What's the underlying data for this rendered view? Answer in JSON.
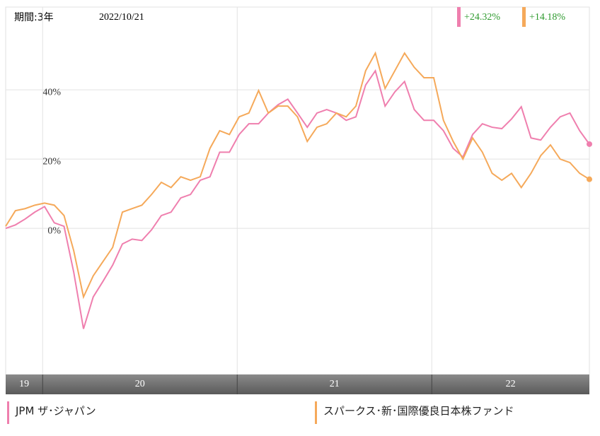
{
  "chart_data": {
    "type": "line",
    "period": "期間:3年",
    "date": "2022/10/21",
    "xlim": [
      2019.81,
      2022.81
    ],
    "ylim": [
      -42.2,
      63.9
    ],
    "yticks": [
      {
        "value": 0,
        "label": "0%"
      },
      {
        "value": 20,
        "label": "20%"
      },
      {
        "value": 40,
        "label": "40%"
      }
    ],
    "year_bands": [
      {
        "label": "19",
        "start": 2019.81,
        "end": 2020
      },
      {
        "label": "20",
        "start": 2020,
        "end": 2021
      },
      {
        "label": "21",
        "start": 2021,
        "end": 2022
      },
      {
        "label": "22",
        "start": 2022,
        "end": 2022.81
      }
    ],
    "x": [
      2019.81,
      2019.86,
      2019.91,
      2019.96,
      2020.01,
      2020.06,
      2020.11,
      2020.16,
      2020.21,
      2020.26,
      2020.31,
      2020.36,
      2020.41,
      2020.46,
      2020.51,
      2020.56,
      2020.61,
      2020.66,
      2020.71,
      2020.76,
      2020.81,
      2020.86,
      2020.91,
      2020.96,
      2021.01,
      2021.06,
      2021.11,
      2021.16,
      2021.21,
      2021.26,
      2021.31,
      2021.36,
      2021.41,
      2021.46,
      2021.51,
      2021.56,
      2021.61,
      2021.66,
      2021.71,
      2021.76,
      2021.81,
      2021.86,
      2021.91,
      2021.96,
      2022.01,
      2022.06,
      2022.11,
      2022.16,
      2022.21,
      2022.26,
      2022.31,
      2022.36,
      2022.41,
      2022.46,
      2022.51,
      2022.56,
      2022.61,
      2022.66,
      2022.71,
      2022.76,
      2022.81
    ],
    "series": [
      {
        "name": "JPM ザ･ジャパン",
        "color": "#ef7fae",
        "return": 24.32,
        "return_label": "+24.32%",
        "values": [
          0,
          1.0,
          2.7,
          4.7,
          6.3,
          1.6,
          0.6,
          -12.7,
          -29,
          -19.8,
          -15.3,
          -10.6,
          -4.5,
          -3.1,
          -3.5,
          -0.4,
          3.7,
          4.7,
          8.8,
          9.8,
          13.9,
          14.9,
          22.0,
          22.0,
          27.1,
          30.2,
          30.2,
          33.3,
          35.7,
          37.3,
          33.3,
          29.2,
          33.3,
          34.3,
          33.3,
          31.2,
          32.2,
          41.4,
          45.5,
          35.3,
          39.4,
          42.4,
          34.3,
          31.2,
          31.2,
          28.2,
          23.1,
          20.6,
          27.1,
          30.2,
          29.2,
          28.8,
          31.6,
          35.1,
          26.1,
          25.5,
          29.2,
          32.2,
          33.3,
          28.2,
          24.32
        ]
      },
      {
        "name": "スパークス･新･国際優良日本株ファンド",
        "color": "#f5a95a",
        "return": 14.18,
        "return_label": "+14.18%",
        "values": [
          0.6,
          5.1,
          5.7,
          6.7,
          7.3,
          6.7,
          3.7,
          -6.5,
          -19.8,
          -13.7,
          -9.6,
          -5.5,
          4.7,
          5.7,
          6.7,
          9.8,
          13.3,
          11.8,
          14.9,
          13.9,
          14.9,
          23.1,
          28.2,
          27.1,
          32.2,
          33.3,
          39.8,
          33.3,
          35.3,
          35.3,
          32.2,
          25.1,
          29.2,
          30.2,
          33.3,
          32.2,
          35.3,
          45.5,
          50.6,
          40.4,
          45.5,
          50.6,
          46.5,
          43.5,
          43.5,
          31.2,
          25.1,
          20.0,
          26.1,
          22.0,
          15.9,
          13.9,
          15.9,
          11.8,
          15.9,
          21.0,
          24.1,
          20.0,
          19.0,
          15.9,
          14.18
        ]
      }
    ]
  }
}
